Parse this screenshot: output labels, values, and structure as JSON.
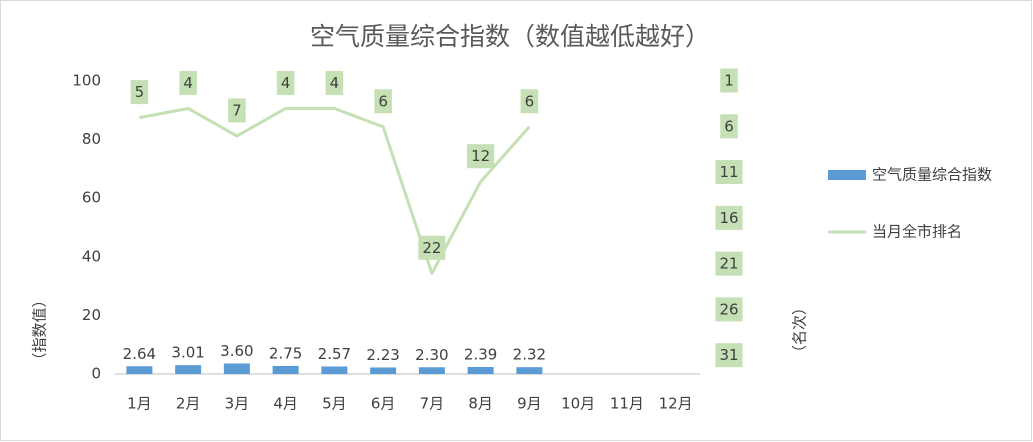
{
  "chart_data": {
    "type": "combo",
    "title": "空气质量综合指数（数值越低越好）",
    "categories": [
      "1月",
      "2月",
      "3月",
      "4月",
      "5月",
      "6月",
      "7月",
      "8月",
      "9月",
      "10月",
      "11月",
      "12月"
    ],
    "ylabel": "（指数值）",
    "y2label": "（名次）",
    "ylim": [
      0,
      100
    ],
    "yticks": [
      0,
      20,
      40,
      60,
      80,
      100
    ],
    "y2lim": [
      33,
      1
    ],
    "y2ticks": [
      1,
      6,
      11,
      16,
      21,
      26,
      31
    ],
    "legend": "right",
    "series": [
      {
        "name": "空气质量综合指数",
        "type": "bar",
        "color": "#5b9bd5",
        "values": [
          2.64,
          3.01,
          3.6,
          2.75,
          2.57,
          2.23,
          2.3,
          2.39,
          2.32,
          null,
          null,
          null
        ],
        "value_labels": [
          "2.64",
          "3.01",
          "3.60",
          "2.75",
          "2.57",
          "2.23",
          "2.30",
          "2.39",
          "2.32",
          null,
          null,
          null
        ]
      },
      {
        "name": "当月全市排名",
        "type": "line",
        "axis": "y2",
        "color": "#c5e0b4",
        "values": [
          5,
          4,
          7,
          4,
          4,
          6,
          22,
          12,
          6,
          null,
          null,
          null
        ]
      }
    ]
  }
}
